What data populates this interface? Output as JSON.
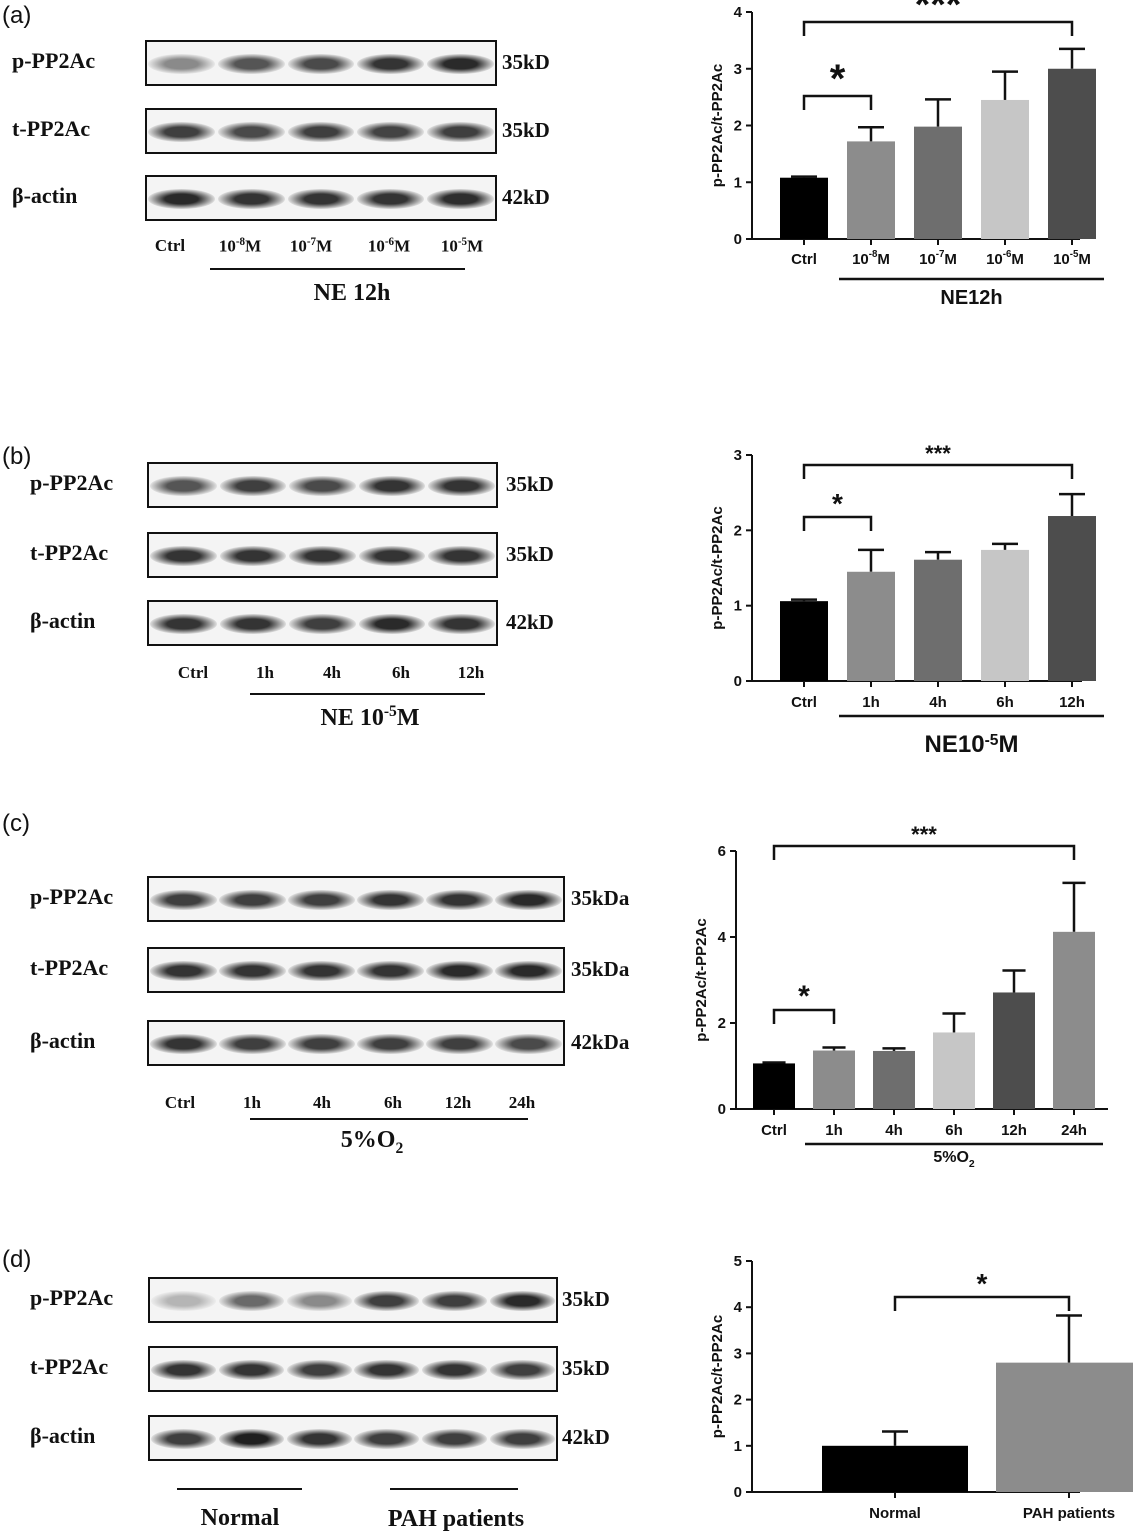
{
  "panels": [
    {
      "letter": "(a)",
      "blots": [
        {
          "label": "p-PP2Ac",
          "size": "35kD",
          "intensity": [
            0.45,
            0.7,
            0.75,
            0.85,
            0.9
          ]
        },
        {
          "label": "t-PP2Ac",
          "size": "35kD",
          "intensity": [
            0.8,
            0.75,
            0.8,
            0.78,
            0.8
          ]
        },
        {
          "label": "β-actin",
          "size": "42kD",
          "intensity": [
            0.9,
            0.85,
            0.85,
            0.85,
            0.88
          ]
        }
      ],
      "lanes": [
        {
          "base": "Ctrl",
          "sup": ""
        },
        {
          "base": "10",
          "sup": "-8",
          "tail": "M"
        },
        {
          "base": "10",
          "sup": "-7",
          "tail": "M"
        },
        {
          "base": "10",
          "sup": "-6",
          "tail": "M"
        },
        {
          "base": "10",
          "sup": "-5",
          "tail": "M"
        }
      ],
      "group": {
        "base": "NE 12h",
        "sup": "",
        "sub": "",
        "tail": ""
      }
    },
    {
      "letter": "(b)",
      "blots": [
        {
          "label": "p-PP2Ac",
          "size": "35kD",
          "intensity": [
            0.7,
            0.8,
            0.75,
            0.85,
            0.85
          ]
        },
        {
          "label": "t-PP2Ac",
          "size": "35kD",
          "intensity": [
            0.85,
            0.85,
            0.85,
            0.85,
            0.85
          ]
        },
        {
          "label": "β-actin",
          "size": "42kD",
          "intensity": [
            0.85,
            0.85,
            0.8,
            0.9,
            0.85
          ]
        }
      ],
      "lanes": [
        {
          "base": "Ctrl",
          "sup": ""
        },
        {
          "base": "1h",
          "sup": ""
        },
        {
          "base": "4h",
          "sup": ""
        },
        {
          "base": "6h",
          "sup": ""
        },
        {
          "base": "12h",
          "sup": ""
        }
      ],
      "group": {
        "base": "NE 10",
        "sup": "-5",
        "sub": "",
        "tail": "M"
      }
    },
    {
      "letter": "(c)",
      "blots": [
        {
          "label": "p-PP2Ac",
          "size": "35kDa",
          "intensity": [
            0.8,
            0.8,
            0.8,
            0.85,
            0.85,
            0.9
          ]
        },
        {
          "label": "t-PP2Ac",
          "size": "35kDa",
          "intensity": [
            0.85,
            0.85,
            0.85,
            0.85,
            0.9,
            0.9
          ]
        },
        {
          "label": "β-actin",
          "size": "42kDa",
          "intensity": [
            0.85,
            0.8,
            0.8,
            0.8,
            0.8,
            0.75
          ]
        }
      ],
      "lanes": [
        {
          "base": "Ctrl",
          "sup": ""
        },
        {
          "base": "1h",
          "sup": ""
        },
        {
          "base": "4h",
          "sup": ""
        },
        {
          "base": "6h",
          "sup": ""
        },
        {
          "base": "12h",
          "sup": ""
        },
        {
          "base": "24h",
          "sup": ""
        }
      ],
      "group": {
        "base": "5%O",
        "sup": "",
        "sub": "2",
        "tail": ""
      }
    },
    {
      "letter": "(d)",
      "blots": [
        {
          "label": "p-PP2Ac",
          "size": "35kD",
          "intensity": [
            0.25,
            0.6,
            0.45,
            0.8,
            0.8,
            0.9
          ]
        },
        {
          "label": "t-PP2Ac",
          "size": "35kD",
          "intensity": [
            0.85,
            0.85,
            0.8,
            0.85,
            0.85,
            0.8
          ]
        },
        {
          "label": "β-actin",
          "size": "42kD",
          "intensity": [
            0.8,
            0.95,
            0.85,
            0.8,
            0.8,
            0.8
          ]
        }
      ],
      "lanes": [],
      "groups": [
        "Normal",
        "PAH patients"
      ]
    }
  ],
  "chart_data": [
    {
      "type": "bar",
      "ylabel": "p-PP2Ac/t-PP2Ac",
      "ylim": [
        0,
        4
      ],
      "yticks": [
        0,
        1,
        2,
        3,
        4
      ],
      "categories": [
        {
          "base": "Ctrl",
          "sup": ""
        },
        {
          "base": "10",
          "sup": "-8",
          "tail": "M"
        },
        {
          "base": "10",
          "sup": "-7",
          "tail": "M"
        },
        {
          "base": "10",
          "sup": "-6",
          "tail": "M"
        },
        {
          "base": "10",
          "sup": "-5",
          "tail": "M"
        }
      ],
      "values": [
        1.08,
        1.72,
        1.98,
        2.45,
        3.0
      ],
      "errors": [
        0.02,
        0.25,
        0.48,
        0.5,
        0.35
      ],
      "colors": [
        "#000000",
        "#8c8c8c",
        "#6e6e6e",
        "#c6c6c6",
        "#4d4d4d"
      ],
      "group_label": {
        "base": "NE12h",
        "sup": "",
        "sub": "",
        "tail": ""
      },
      "group_span": [
        1,
        4
      ],
      "significance": [
        {
          "from": 0,
          "to": 1,
          "label": "*"
        },
        {
          "from": 0,
          "to": 4,
          "label": "***"
        }
      ]
    },
    {
      "type": "bar",
      "ylabel": "p-PP2Ac/t-PP2Ac",
      "ylim": [
        0,
        3
      ],
      "yticks": [
        0,
        1,
        2,
        3
      ],
      "categories": [
        {
          "base": "Ctrl",
          "sup": ""
        },
        {
          "base": "1h",
          "sup": ""
        },
        {
          "base": "4h",
          "sup": ""
        },
        {
          "base": "6h",
          "sup": ""
        },
        {
          "base": "12h",
          "sup": ""
        }
      ],
      "values": [
        1.06,
        1.45,
        1.61,
        1.74,
        2.19
      ],
      "errors": [
        0.02,
        0.29,
        0.1,
        0.08,
        0.29
      ],
      "colors": [
        "#000000",
        "#8c8c8c",
        "#6e6e6e",
        "#c6c6c6",
        "#4d4d4d"
      ],
      "group_label": {
        "base": "NE10",
        "sup": "-5",
        "sub": "",
        "tail": "M"
      },
      "group_span": [
        1,
        4
      ],
      "significance": [
        {
          "from": 0,
          "to": 1,
          "label": "*"
        },
        {
          "from": 0,
          "to": 4,
          "label": "***"
        }
      ]
    },
    {
      "type": "bar",
      "ylabel": "p-PP2Ac/t-PP2Ac",
      "ylim": [
        0,
        6
      ],
      "yticks": [
        0,
        2,
        4,
        6
      ],
      "categories": [
        {
          "base": "Ctrl",
          "sup": ""
        },
        {
          "base": "1h",
          "sup": ""
        },
        {
          "base": "4h",
          "sup": ""
        },
        {
          "base": "6h",
          "sup": ""
        },
        {
          "base": "12h",
          "sup": ""
        },
        {
          "base": "24h",
          "sup": ""
        }
      ],
      "values": [
        1.06,
        1.36,
        1.35,
        1.78,
        2.71,
        4.12
      ],
      "errors": [
        0.02,
        0.07,
        0.06,
        0.44,
        0.51,
        1.14
      ],
      "colors": [
        "#000000",
        "#8c8c8c",
        "#6e6e6e",
        "#c6c6c6",
        "#4d4d4d",
        "#8c8c8c"
      ],
      "group_label": {
        "base": "5%O",
        "sup": "",
        "sub": "2",
        "tail": ""
      },
      "group_span": [
        1,
        5
      ],
      "significance": [
        {
          "from": 0,
          "to": 1,
          "label": "*"
        },
        {
          "from": 0,
          "to": 5,
          "label": "***"
        }
      ]
    },
    {
      "type": "bar",
      "ylabel": "p-PP2Ac/t-PP2Ac",
      "ylim": [
        0,
        5
      ],
      "yticks": [
        0,
        1,
        2,
        3,
        4,
        5
      ],
      "categories": [
        {
          "base": "Normal",
          "sup": ""
        },
        {
          "base": "PAH patients",
          "sup": ""
        }
      ],
      "values": [
        1.0,
        2.8
      ],
      "errors": [
        0.31,
        1.02
      ],
      "colors": [
        "#000000",
        "#8c8c8c"
      ],
      "significance": [
        {
          "from": 0,
          "to": 1,
          "label": "*"
        }
      ]
    }
  ]
}
